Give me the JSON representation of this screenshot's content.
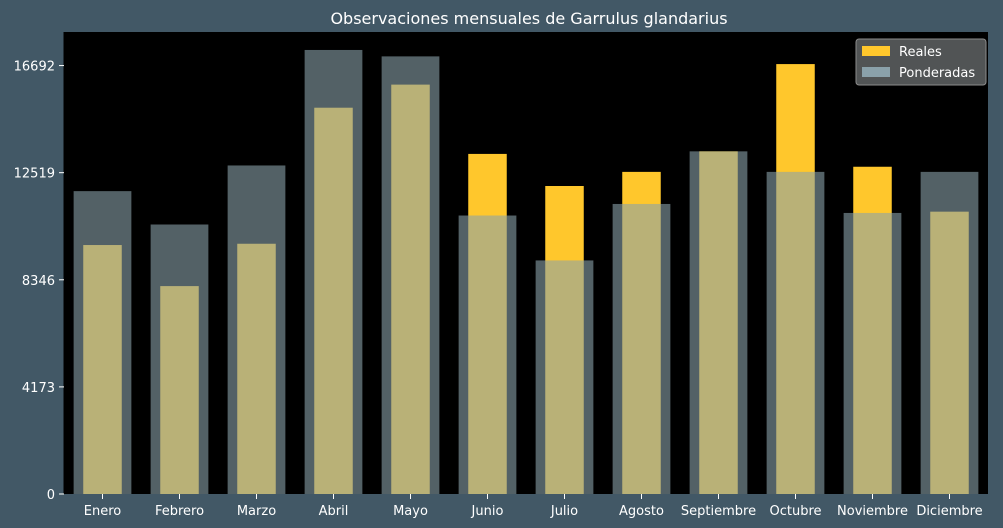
{
  "chart_data": {
    "type": "bar",
    "title": "Observaciones mensuales de Garrulus glandarius",
    "xlabel": "",
    "ylabel": "",
    "categories": [
      "Enero",
      "Febrero",
      "Marzo",
      "Abril",
      "Mayo",
      "Junio",
      "Julio",
      "Agosto",
      "Septiembre",
      "Octubre",
      "Noviembre",
      "Diciembre"
    ],
    "series": [
      {
        "name": "Reales",
        "values": [
          9700,
          8100,
          9750,
          15050,
          15950,
          13250,
          12000,
          12550,
          13350,
          16750,
          12750,
          11000
        ],
        "color": "#ffc72c"
      },
      {
        "name": "Ponderadas",
        "values": [
          11800,
          10500,
          12800,
          17300,
          17050,
          10850,
          9100,
          11300,
          13350,
          12550,
          10950,
          12550
        ],
        "color": "#8aa1aa"
      }
    ],
    "ylim": [
      0,
      18000
    ],
    "yticks": [
      0,
      4173,
      8346,
      12519,
      16692
    ],
    "grid": false,
    "legend": "top-right",
    "colors": {
      "background": "#425866",
      "plot_background": "#000000",
      "overlap": "#d6d18c",
      "text": "#ffffff"
    }
  }
}
